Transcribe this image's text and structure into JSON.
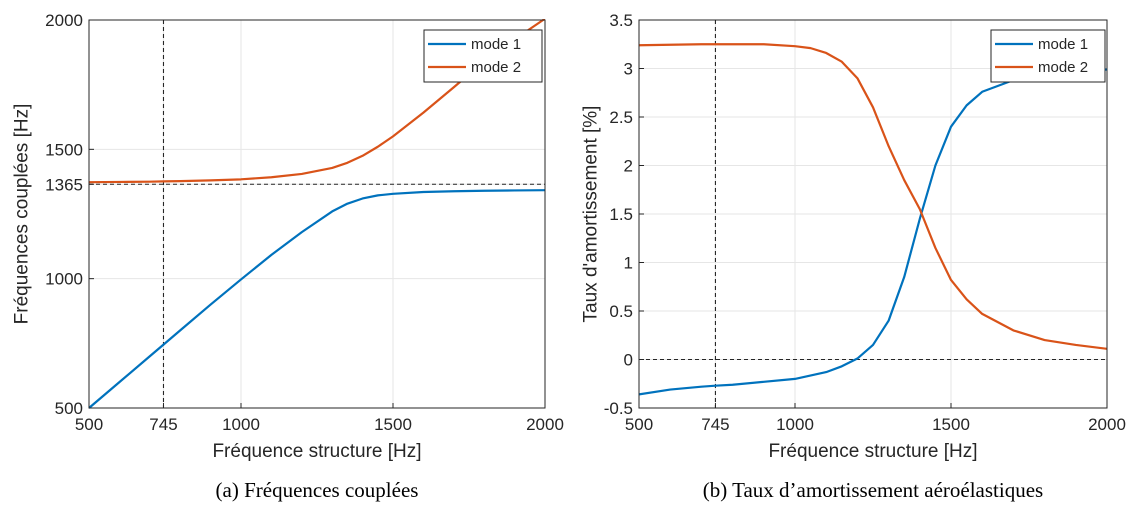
{
  "chart_data": [
    {
      "id": "a",
      "type": "line",
      "caption": "(a) Fréquences couplées",
      "xlabel": "Fréquence structure [Hz]",
      "ylabel": "Fréquences couplées [Hz]",
      "xlim": [
        500,
        2000
      ],
      "ylim": [
        500,
        2000
      ],
      "xticks": [
        500,
        745,
        1000,
        1500,
        2000
      ],
      "yticks": [
        500,
        1000,
        1365,
        1500,
        2000
      ],
      "grid": true,
      "legend_position": "top-right",
      "reference_lines": [
        {
          "orientation": "vertical",
          "value": 745
        },
        {
          "orientation": "horizontal",
          "value": 1365
        }
      ],
      "series": [
        {
          "name": "mode 1",
          "color": "#0072BD",
          "x": [
            500,
            600,
            700,
            745,
            800,
            900,
            1000,
            1100,
            1200,
            1300,
            1350,
            1400,
            1450,
            1500,
            1600,
            1700,
            1800,
            1900,
            2000
          ],
          "y": [
            500,
            600,
            700,
            745,
            800,
            900,
            997,
            1092,
            1180,
            1260,
            1290,
            1310,
            1322,
            1328,
            1335,
            1338,
            1340,
            1341,
            1342
          ]
        },
        {
          "name": "mode 2",
          "color": "#D95319",
          "x": [
            500,
            600,
            700,
            745,
            800,
            900,
            1000,
            1100,
            1200,
            1300,
            1350,
            1400,
            1450,
            1500,
            1600,
            1700,
            1800,
            1900,
            2000
          ],
          "y": [
            1373,
            1374,
            1375,
            1376,
            1377,
            1380,
            1384,
            1392,
            1405,
            1428,
            1448,
            1475,
            1510,
            1550,
            1642,
            1740,
            1840,
            1925,
            2005
          ]
        }
      ]
    },
    {
      "id": "b",
      "type": "line",
      "caption": "(b) Taux d’amortissement aéroélastiques",
      "xlabel": "Fréquence structure [Hz]",
      "ylabel": "Taux d'amortissement [%]",
      "xlim": [
        500,
        2000
      ],
      "ylim": [
        -0.5,
        3.5
      ],
      "xticks": [
        500,
        745,
        1000,
        1500,
        2000
      ],
      "yticks": [
        -0.5,
        0,
        0.5,
        1,
        1.5,
        2,
        2.5,
        3,
        3.5
      ],
      "grid": true,
      "legend_position": "top-right",
      "reference_lines": [
        {
          "orientation": "vertical",
          "value": 745
        },
        {
          "orientation": "horizontal",
          "value": 0
        }
      ],
      "series": [
        {
          "name": "mode 1",
          "color": "#0072BD",
          "x": [
            500,
            600,
            700,
            745,
            800,
            900,
            1000,
            1100,
            1150,
            1200,
            1250,
            1300,
            1350,
            1400,
            1450,
            1500,
            1550,
            1600,
            1700,
            1800,
            1900,
            2000
          ],
          "y": [
            -0.36,
            -0.31,
            -0.28,
            -0.27,
            -0.26,
            -0.23,
            -0.2,
            -0.13,
            -0.07,
            0.01,
            0.15,
            0.4,
            0.85,
            1.45,
            2.0,
            2.4,
            2.62,
            2.76,
            2.88,
            2.94,
            2.97,
            2.99
          ]
        },
        {
          "name": "mode 2",
          "color": "#D95319",
          "x": [
            500,
            600,
            700,
            745,
            800,
            900,
            1000,
            1050,
            1100,
            1150,
            1200,
            1250,
            1300,
            1350,
            1400,
            1450,
            1500,
            1550,
            1600,
            1700,
            1800,
            1900,
            2000
          ],
          "y": [
            3.24,
            3.245,
            3.25,
            3.25,
            3.25,
            3.25,
            3.23,
            3.21,
            3.16,
            3.07,
            2.9,
            2.6,
            2.2,
            1.85,
            1.55,
            1.15,
            0.82,
            0.62,
            0.47,
            0.3,
            0.2,
            0.15,
            0.11
          ]
        }
      ]
    }
  ]
}
